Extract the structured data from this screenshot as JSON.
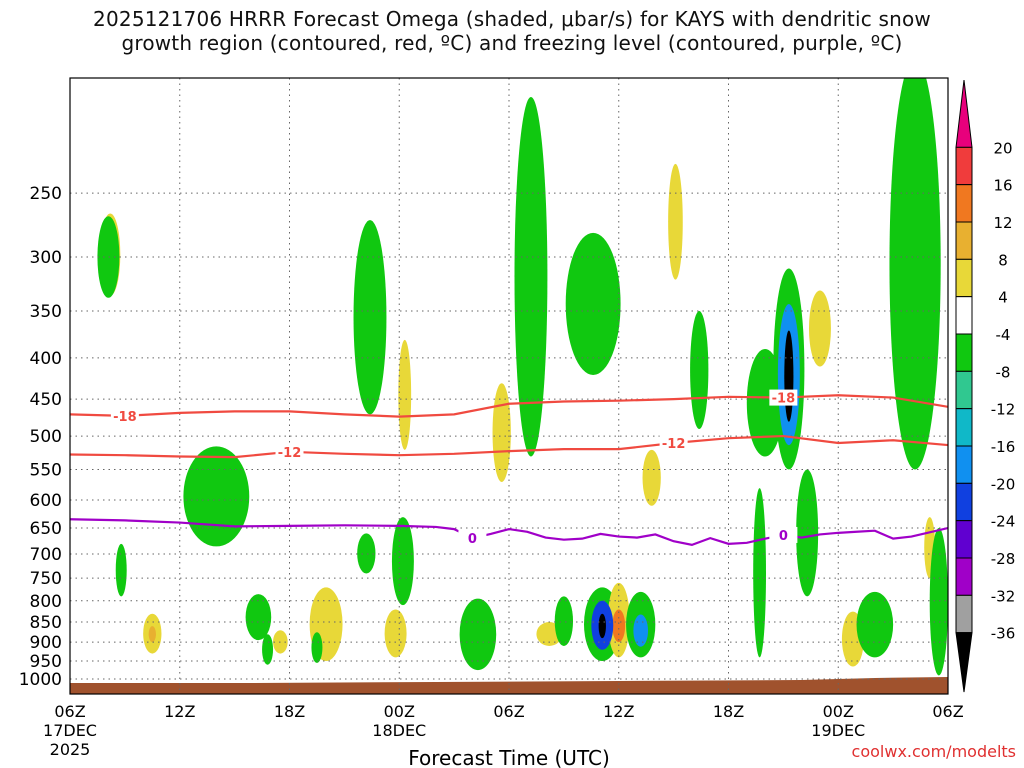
{
  "title_line1": "2025121706 HRRR Forecast Omega (shaded, μbar/s) for KAYS with dendritic snow",
  "title_line2": "growth region (contoured, red, ºC) and freezing level (contoured, purple, ºC)",
  "xlabel": "Forecast Time (UTC)",
  "credit": "coolwx.com/modelts",
  "colors": {
    "dgz": "#f04a40",
    "freezing": "#a000c8",
    "terrain": "#a0522d",
    "grid": "#666666"
  },
  "chart_data": {
    "type": "heatmap",
    "x_range_hours": [
      0,
      48
    ],
    "y_range_hpa": [
      1000,
      180
    ],
    "y_ticks": [
      250,
      300,
      350,
      400,
      450,
      500,
      550,
      600,
      650,
      700,
      750,
      800,
      850,
      900,
      950,
      1000
    ],
    "x_ticks": [
      {
        "hour": 0,
        "l1": "06Z",
        "l2": "17DEC",
        "l3": "2025"
      },
      {
        "hour": 6,
        "l1": "12Z",
        "l2": "",
        "l3": ""
      },
      {
        "hour": 12,
        "l1": "18Z",
        "l2": "",
        "l3": ""
      },
      {
        "hour": 18,
        "l1": "00Z",
        "l2": "18DEC",
        "l3": ""
      },
      {
        "hour": 24,
        "l1": "06Z",
        "l2": "",
        "l3": ""
      },
      {
        "hour": 30,
        "l1": "12Z",
        "l2": "",
        "l3": ""
      },
      {
        "hour": 36,
        "l1": "18Z",
        "l2": "",
        "l3": ""
      },
      {
        "hour": 42,
        "l1": "00Z",
        "l2": "19DEC",
        "l3": ""
      },
      {
        "hour": 48,
        "l1": "06Z",
        "l2": "",
        "l3": ""
      }
    ],
    "colorbar": [
      {
        "label": "20",
        "color": "#e8007c"
      },
      {
        "label": "16",
        "color": "#f03c3c"
      },
      {
        "label": "12",
        "color": "#f07820"
      },
      {
        "label": "8",
        "color": "#e8b030"
      },
      {
        "label": "4",
        "color": "#e8d838"
      },
      {
        "label": "-4",
        "color": "#ffffff"
      },
      {
        "label": "-8",
        "color": "#10c810"
      },
      {
        "label": "-12",
        "color": "#30c890"
      },
      {
        "label": "-16",
        "color": "#10b8c8"
      },
      {
        "label": "-20",
        "color": "#1090f0"
      },
      {
        "label": "-24",
        "color": "#1040e0"
      },
      {
        "label": "-28",
        "color": "#6000d0"
      },
      {
        "label": "-32",
        "color": "#a000c8"
      },
      {
        "label": "-36",
        "color": "#a0a0a0"
      },
      {
        "label": "",
        "color": "#000000"
      }
    ],
    "contours": {
      "dgz_minus18": {
        "label": "-18",
        "points": [
          [
            0,
            470
          ],
          [
            3,
            472
          ],
          [
            6,
            468
          ],
          [
            9,
            466
          ],
          [
            12,
            466
          ],
          [
            15,
            470
          ],
          [
            18,
            473
          ],
          [
            21,
            470
          ],
          [
            24,
            456
          ],
          [
            27,
            453
          ],
          [
            30,
            452
          ],
          [
            33,
            450
          ],
          [
            36,
            447
          ],
          [
            39,
            448
          ],
          [
            42,
            445
          ],
          [
            45,
            448
          ],
          [
            48,
            460
          ]
        ]
      },
      "dgz_minus12": {
        "label": "-12",
        "points": [
          [
            0,
            527
          ],
          [
            3,
            528
          ],
          [
            6,
            530
          ],
          [
            9,
            531
          ],
          [
            12,
            523
          ],
          [
            15,
            526
          ],
          [
            18,
            528
          ],
          [
            21,
            526
          ],
          [
            24,
            522
          ],
          [
            27,
            519
          ],
          [
            30,
            519
          ],
          [
            33,
            510
          ],
          [
            36,
            503
          ],
          [
            39,
            500
          ],
          [
            42,
            510
          ],
          [
            45,
            506
          ],
          [
            48,
            513
          ]
        ]
      },
      "freezing_0": {
        "label": "0",
        "points": [
          [
            0,
            634
          ],
          [
            3,
            636
          ],
          [
            6,
            640
          ],
          [
            9,
            647
          ],
          [
            12,
            646
          ],
          [
            15,
            645
          ],
          [
            18,
            646
          ],
          [
            20,
            648
          ],
          [
            21,
            652
          ],
          [
            22,
            669
          ],
          [
            23,
            661
          ],
          [
            24,
            652
          ],
          [
            25,
            657
          ],
          [
            26,
            668
          ],
          [
            27,
            672
          ],
          [
            28,
            670
          ],
          [
            29,
            661
          ],
          [
            30,
            666
          ],
          [
            31,
            668
          ],
          [
            32,
            662
          ],
          [
            33,
            675
          ],
          [
            34,
            682
          ],
          [
            35,
            669
          ],
          [
            36,
            680
          ],
          [
            37,
            678
          ],
          [
            38,
            670
          ],
          [
            39,
            663
          ],
          [
            40,
            668
          ],
          [
            41,
            662
          ],
          [
            42,
            659
          ],
          [
            43,
            657
          ],
          [
            44,
            655
          ],
          [
            45,
            670
          ],
          [
            46,
            666
          ],
          [
            47,
            658
          ],
          [
            48,
            650
          ]
        ]
      }
    },
    "regions": [
      {
        "id": "omega-green-hour1-upper",
        "value": -6,
        "color": "#10c810",
        "cx": 2.1,
        "cy": 302,
        "rx": 0.6,
        "ry": 35
      },
      {
        "id": "omega-yellow-hour2-upper",
        "value": 5,
        "color": "#e8d838",
        "cx": 2.2,
        "cy": 300,
        "rx": 0.55,
        "ry": 35
      },
      {
        "id": "omega-green-hour8",
        "value": -6,
        "color": "#10c810",
        "cx": 8.0,
        "cy": 600,
        "rx": 1.8,
        "ry": 85
      },
      {
        "id": "omega-green-hour16",
        "value": -6,
        "color": "#10c810",
        "cx": 16.4,
        "cy": 370,
        "rx": 0.9,
        "ry": 100
      },
      {
        "id": "omega-green-hour25-tower",
        "value": -7,
        "color": "#10c810",
        "cx": 25.2,
        "cy": 360,
        "rx": 0.9,
        "ry": 170
      },
      {
        "id": "omega-green-hour28",
        "value": -6,
        "color": "#10c810",
        "cx": 28.6,
        "cy": 350,
        "rx": 1.5,
        "ry": 70
      },
      {
        "id": "omega-yellow-hour33",
        "value": 5,
        "color": "#e8d838",
        "cx": 33.1,
        "cy": 275,
        "rx": 0.4,
        "ry": 45
      },
      {
        "id": "omega-green-hour34",
        "value": -6,
        "color": "#10c810",
        "cx": 34.4,
        "cy": 420,
        "rx": 0.5,
        "ry": 70
      },
      {
        "id": "omega-green-hour38-blob",
        "value": -7,
        "color": "#10c810",
        "cx": 38.0,
        "cy": 460,
        "rx": 1.0,
        "ry": 70
      },
      {
        "id": "omega-core-hour39",
        "value": -38,
        "color": "#000000",
        "cx": 39.3,
        "cy": 425,
        "rx": 0.25,
        "ry": 55
      },
      {
        "id": "omega-mid-hour39",
        "value": -20,
        "color": "#1090f0",
        "cx": 39.3,
        "cy": 428,
        "rx": 0.6,
        "ry": 85
      },
      {
        "id": "omega-green-hour39",
        "value": -8,
        "color": "#10c810",
        "cx": 39.3,
        "cy": 430,
        "rx": 0.85,
        "ry": 120
      },
      {
        "id": "omega-yellow-hour41",
        "value": 5,
        "color": "#e8d838",
        "cx": 41.0,
        "cy": 370,
        "rx": 0.6,
        "ry": 40
      },
      {
        "id": "omega-green-hour46-right",
        "value": -10,
        "color": "#10c810",
        "cx": 46.2,
        "cy": 360,
        "rx": 1.4,
        "ry": 190
      },
      {
        "id": "omega-core-hour29-lower",
        "value": -38,
        "color": "#000000",
        "cx": 29.1,
        "cy": 860,
        "rx": 0.2,
        "ry": 30
      },
      {
        "id": "omega-blue-hour29",
        "value": -22,
        "color": "#1040e0",
        "cx": 29.1,
        "cy": 860,
        "rx": 0.6,
        "ry": 60
      },
      {
        "id": "omega-green-hour29",
        "value": -8,
        "color": "#10c810",
        "cx": 29.1,
        "cy": 860,
        "rx": 1.0,
        "ry": 90
      },
      {
        "id": "omega-orange-hour30",
        "value": 14,
        "color": "#f07820",
        "cx": 30.0,
        "cy": 860,
        "rx": 0.35,
        "ry": 40
      },
      {
        "id": "omega-yellow-hour30",
        "value": 8,
        "color": "#e8d838",
        "cx": 30.0,
        "cy": 850,
        "rx": 0.6,
        "ry": 90
      },
      {
        "id": "omega-blue-hour31",
        "value": -18,
        "color": "#1090f0",
        "cx": 31.2,
        "cy": 872,
        "rx": 0.4,
        "ry": 40
      },
      {
        "id": "omega-green-hour31",
        "value": -8,
        "color": "#10c810",
        "cx": 31.2,
        "cy": 860,
        "rx": 0.8,
        "ry": 80
      },
      {
        "id": "omega-green-hour22-lower",
        "value": -7,
        "color": "#10c810",
        "cx": 22.3,
        "cy": 885,
        "rx": 1.0,
        "ry": 90
      },
      {
        "id": "omega-yellow-hour14",
        "value": 6,
        "color": "#e8d838",
        "cx": 14.0,
        "cy": 860,
        "rx": 0.9,
        "ry": 90
      },
      {
        "id": "omega-green-hour10",
        "value": -6,
        "color": "#10c810",
        "cx": 10.3,
        "cy": 840,
        "rx": 0.7,
        "ry": 55
      },
      {
        "id": "omega-yellow-hour5",
        "value": 6,
        "color": "#e8d838",
        "cx": 4.5,
        "cy": 880,
        "rx": 0.5,
        "ry": 50
      },
      {
        "id": "omega-orange-hour5",
        "value": 10,
        "color": "#e8b030",
        "cx": 4.5,
        "cy": 880,
        "rx": 0.2,
        "ry": 20
      },
      {
        "id": "omega-yellow-hour18",
        "value": 6,
        "color": "#e8d838",
        "cx": 17.8,
        "cy": 880,
        "rx": 0.6,
        "ry": 60
      },
      {
        "id": "omega-green-hour38-lower",
        "value": -7,
        "color": "#10c810",
        "cx": 37.7,
        "cy": 760,
        "rx": 0.35,
        "ry": 180
      },
      {
        "id": "omega-green-hour40-lower",
        "value": -7,
        "color": "#10c810",
        "cx": 40.3,
        "cy": 670,
        "rx": 0.6,
        "ry": 120
      },
      {
        "id": "omega-yellow-hour43",
        "value": 6,
        "color": "#e8d838",
        "cx": 42.8,
        "cy": 895,
        "rx": 0.6,
        "ry": 70
      },
      {
        "id": "omega-green-hour44",
        "value": -6,
        "color": "#10c810",
        "cx": 44.0,
        "cy": 860,
        "rx": 1.0,
        "ry": 80
      },
      {
        "id": "omega-green-hour47-lower",
        "value": -8,
        "color": "#10c810",
        "cx": 47.5,
        "cy": 820,
        "rx": 0.5,
        "ry": 170
      },
      {
        "id": "omega-yellow-hour47",
        "value": 6,
        "color": "#e8d838",
        "cx": 47.0,
        "cy": 690,
        "rx": 0.3,
        "ry": 60
      },
      {
        "id": "omega-yellow-hour19",
        "value": 5,
        "color": "#e8d838",
        "cx": 18.3,
        "cy": 450,
        "rx": 0.35,
        "ry": 70
      },
      {
        "id": "omega-yellow-hour23",
        "value": 5,
        "color": "#e8d838",
        "cx": 23.6,
        "cy": 500,
        "rx": 0.5,
        "ry": 70
      },
      {
        "id": "omega-yellow-hour32",
        "value": 5,
        "color": "#e8d838",
        "cx": 31.8,
        "cy": 565,
        "rx": 0.5,
        "ry": 45
      },
      {
        "id": "omega-green-hour27",
        "value": -6,
        "color": "#10c810",
        "cx": 27.0,
        "cy": 850,
        "rx": 0.5,
        "ry": 60
      },
      {
        "id": "omega-yellow-hour26",
        "value": 5,
        "color": "#e8d838",
        "cx": 26.2,
        "cy": 880,
        "rx": 0.7,
        "ry": 30
      },
      {
        "id": "omega-green-hour16-lower",
        "value": -6,
        "color": "#10c810",
        "cx": 16.2,
        "cy": 700,
        "rx": 0.5,
        "ry": 40
      },
      {
        "id": "omega-green-hour18-lower",
        "value": -7,
        "color": "#10c810",
        "cx": 18.2,
        "cy": 720,
        "rx": 0.6,
        "ry": 90
      },
      {
        "id": "omega-green-hour13",
        "value": -6,
        "color": "#10c810",
        "cx": 13.5,
        "cy": 915,
        "rx": 0.3,
        "ry": 40
      },
      {
        "id": "omega-green-hour11",
        "value": -6,
        "color": "#10c810",
        "cx": 10.8,
        "cy": 920,
        "rx": 0.3,
        "ry": 40
      },
      {
        "id": "omega-yellow-hour12",
        "value": 6,
        "color": "#e8d838",
        "cx": 11.5,
        "cy": 900,
        "rx": 0.4,
        "ry": 30
      },
      {
        "id": "omega-green-hour2-lower",
        "value": -6,
        "color": "#10c810",
        "cx": 2.8,
        "cy": 735,
        "rx": 0.3,
        "ry": 55
      }
    ]
  }
}
